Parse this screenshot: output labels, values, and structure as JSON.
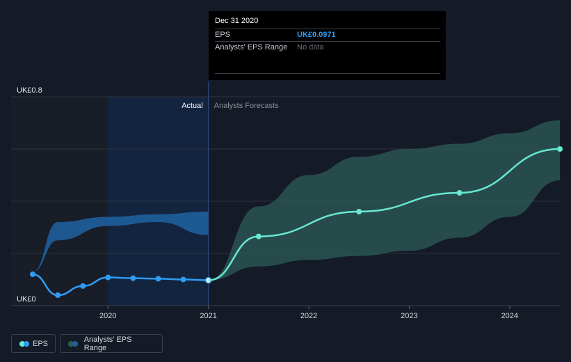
{
  "tooltip": {
    "date": "Dec 31 2020",
    "rows": [
      {
        "label": "EPS",
        "value": "UK£0.0971"
      },
      {
        "label": "Analysts' EPS Range",
        "value": "No data"
      }
    ]
  },
  "legend": {
    "eps_label": "EPS",
    "range_label": "Analysts' EPS Range"
  },
  "colors": {
    "background": "#151b26",
    "actual_line": "#2f9cf4",
    "actual_band": "#1f5f9c",
    "forecast_line": "#67e8d2",
    "forecast_band": "#2e5c58",
    "actual_region": "#13243f"
  },
  "chart_data": {
    "type": "line",
    "title": "",
    "xlabel": "",
    "ylabel": "",
    "ylim": [
      0,
      0.8
    ],
    "xlim": [
      2019.25,
      2024.5
    ],
    "y_tick_labels": [
      "UK£0",
      "UK£0.8"
    ],
    "y_tick_values": [
      0,
      0.8
    ],
    "y_gridlines": [
      0,
      0.2,
      0.4,
      0.6,
      0.8
    ],
    "x_tick_labels": [
      "2020",
      "2021",
      "2022",
      "2023",
      "2024"
    ],
    "x_tick_values": [
      2020,
      2021,
      2022,
      2023,
      2024
    ],
    "divider_x": 2021,
    "section_labels": {
      "actual": "Actual",
      "forecast": "Analysts Forecasts"
    },
    "series": [
      {
        "name": "EPS",
        "role": "actual",
        "x": [
          2019.25,
          2019.5,
          2019.75,
          2020.0,
          2020.25,
          2020.5,
          2020.75,
          2021.0
        ],
        "y": [
          0.12,
          0.04,
          0.075,
          0.108,
          0.105,
          0.103,
          0.1,
          0.0971
        ]
      },
      {
        "name": "EPS",
        "role": "forecast",
        "x": [
          2021.0,
          2021.5,
          2022.5,
          2023.5,
          2024.5
        ],
        "y": [
          0.0971,
          0.265,
          0.36,
          0.432,
          0.6
        ]
      }
    ],
    "ranges": [
      {
        "role": "actual",
        "x": [
          2019.25,
          2019.5,
          2020.0,
          2020.5,
          2021.0
        ],
        "upper": [
          0.13,
          0.32,
          0.34,
          0.35,
          0.36
        ],
        "lower": [
          0.13,
          0.25,
          0.305,
          0.32,
          0.27
        ]
      },
      {
        "role": "forecast",
        "x": [
          2021.0,
          2021.5,
          2022.0,
          2022.5,
          2023.0,
          2023.5,
          2024.0,
          2024.5
        ],
        "upper": [
          0.0971,
          0.38,
          0.5,
          0.57,
          0.6,
          0.62,
          0.66,
          0.71
        ],
        "lower": [
          0.0971,
          0.15,
          0.175,
          0.19,
          0.21,
          0.26,
          0.34,
          0.48
        ]
      }
    ]
  }
}
